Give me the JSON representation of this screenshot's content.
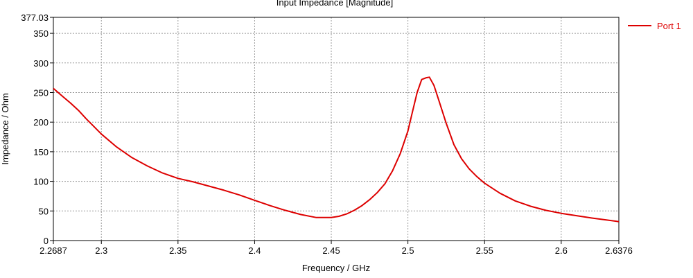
{
  "chart_data": {
    "type": "line",
    "title": "Input Impedance [Magnitude]",
    "xlabel": "Frequency / GHz",
    "ylabel": "Impedance / Ohm",
    "xlim": [
      2.2687,
      2.6376
    ],
    "ylim": [
      0,
      377.03
    ],
    "x_ticks": [
      2.2687,
      2.3,
      2.35,
      2.4,
      2.45,
      2.5,
      2.55,
      2.6,
      2.6376
    ],
    "x_tick_labels": [
      "2.2687",
      "2.3",
      "2.35",
      "2.4",
      "2.45",
      "2.5",
      "2.55",
      "2.6",
      "2.6376"
    ],
    "y_ticks": [
      0,
      50,
      100,
      150,
      200,
      250,
      300,
      350,
      377.03
    ],
    "y_tick_labels": [
      "0",
      "50",
      "100",
      "150",
      "200",
      "250",
      "300",
      "350",
      "377.03"
    ],
    "grid": true,
    "legend_position": "top-right",
    "series": [
      {
        "name": "Port 1",
        "color": "#dd0000",
        "x": [
          2.2687,
          2.275,
          2.28,
          2.285,
          2.29,
          2.295,
          2.3,
          2.31,
          2.32,
          2.33,
          2.34,
          2.35,
          2.36,
          2.37,
          2.38,
          2.39,
          2.4,
          2.41,
          2.42,
          2.43,
          2.44,
          2.45,
          2.455,
          2.46,
          2.465,
          2.47,
          2.475,
          2.48,
          2.485,
          2.49,
          2.495,
          2.5,
          2.503,
          2.506,
          2.509,
          2.512,
          2.514,
          2.517,
          2.52,
          2.525,
          2.53,
          2.535,
          2.54,
          2.545,
          2.55,
          2.56,
          2.57,
          2.58,
          2.59,
          2.6,
          2.61,
          2.62,
          2.6376
        ],
        "y": [
          257,
          243,
          232,
          220,
          206,
          193,
          180,
          158,
          140,
          126,
          114,
          105,
          99,
          92,
          85,
          77,
          68,
          59,
          51,
          44,
          39,
          39,
          41,
          45,
          51,
          59,
          69,
          81,
          96,
          118,
          147,
          185,
          218,
          250,
          272,
          275,
          276,
          262,
          238,
          198,
          162,
          138,
          121,
          108,
          97,
          80,
          67,
          58,
          51,
          46,
          42,
          38,
          32
        ]
      }
    ]
  }
}
